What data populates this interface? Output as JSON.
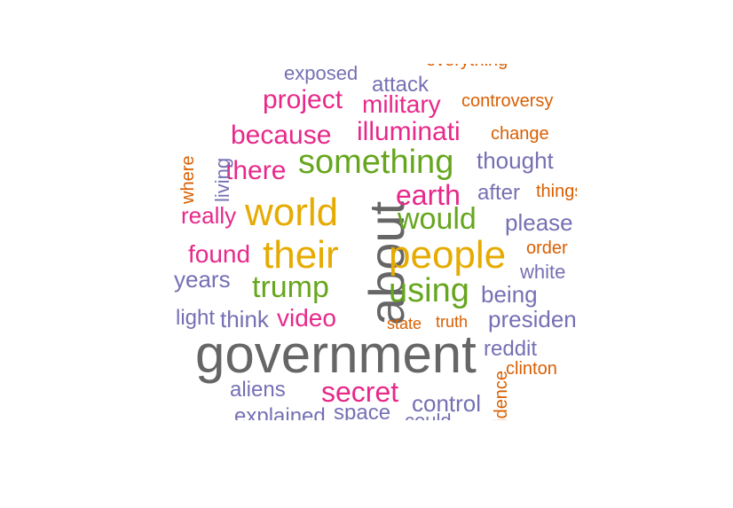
{
  "words": [
    {
      "text": "government",
      "color": "#666666"
    },
    {
      "text": "about",
      "color": "#666666",
      "rotated": true
    },
    {
      "text": "people",
      "color": "#E6AB02"
    },
    {
      "text": "their",
      "color": "#E6AB02"
    },
    {
      "text": "world",
      "color": "#E6AB02"
    },
    {
      "text": "something",
      "color": "#66A61E"
    },
    {
      "text": "using",
      "color": "#66A61E"
    },
    {
      "text": "trump",
      "color": "#66A61E"
    },
    {
      "text": "would",
      "color": "#66A61E"
    },
    {
      "text": "earth",
      "color": "#E7298A"
    },
    {
      "text": "secret",
      "color": "#E7298A"
    },
    {
      "text": "illuminati",
      "color": "#E7298A"
    },
    {
      "text": "because",
      "color": "#E7298A"
    },
    {
      "text": "there",
      "color": "#E7298A"
    },
    {
      "text": "project",
      "color": "#E7298A"
    },
    {
      "text": "military",
      "color": "#E7298A"
    },
    {
      "text": "really",
      "color": "#E7298A"
    },
    {
      "text": "found",
      "color": "#E7298A"
    },
    {
      "text": "video",
      "color": "#E7298A"
    },
    {
      "text": "thought",
      "color": "#7570B3"
    },
    {
      "text": "please",
      "color": "#7570B3"
    },
    {
      "text": "after",
      "color": "#7570B3"
    },
    {
      "text": "president",
      "color": "#7570B3"
    },
    {
      "text": "being",
      "color": "#7570B3"
    },
    {
      "text": "white",
      "color": "#7570B3"
    },
    {
      "text": "years",
      "color": "#7570B3"
    },
    {
      "text": "think",
      "color": "#7570B3"
    },
    {
      "text": "light",
      "color": "#7570B3"
    },
    {
      "text": "aliens",
      "color": "#7570B3"
    },
    {
      "text": "control",
      "color": "#7570B3"
    },
    {
      "text": "space",
      "color": "#7570B3"
    },
    {
      "text": "reddit",
      "color": "#7570B3"
    },
    {
      "text": "attack",
      "color": "#7570B3"
    },
    {
      "text": "exposed",
      "color": "#7570B3"
    },
    {
      "text": "explained",
      "color": "#7570B3"
    },
    {
      "text": "could",
      "color": "#7570B3"
    },
    {
      "text": "living",
      "color": "#7570B3",
      "rotated": true
    },
    {
      "text": "controversy",
      "color": "#D95F02"
    },
    {
      "text": "change",
      "color": "#D95F02"
    },
    {
      "text": "things",
      "color": "#D95F02"
    },
    {
      "text": "order",
      "color": "#D95F02"
    },
    {
      "text": "state",
      "color": "#D95F02"
    },
    {
      "text": "truth",
      "color": "#D95F02"
    },
    {
      "text": "clinton",
      "color": "#D95F02"
    },
    {
      "text": "where",
      "color": "#D95F02",
      "rotated": true
    },
    {
      "text": "evidence",
      "color": "#D95F02",
      "rotated": true
    },
    {
      "text": "everything",
      "color": "#D95F02"
    }
  ]
}
